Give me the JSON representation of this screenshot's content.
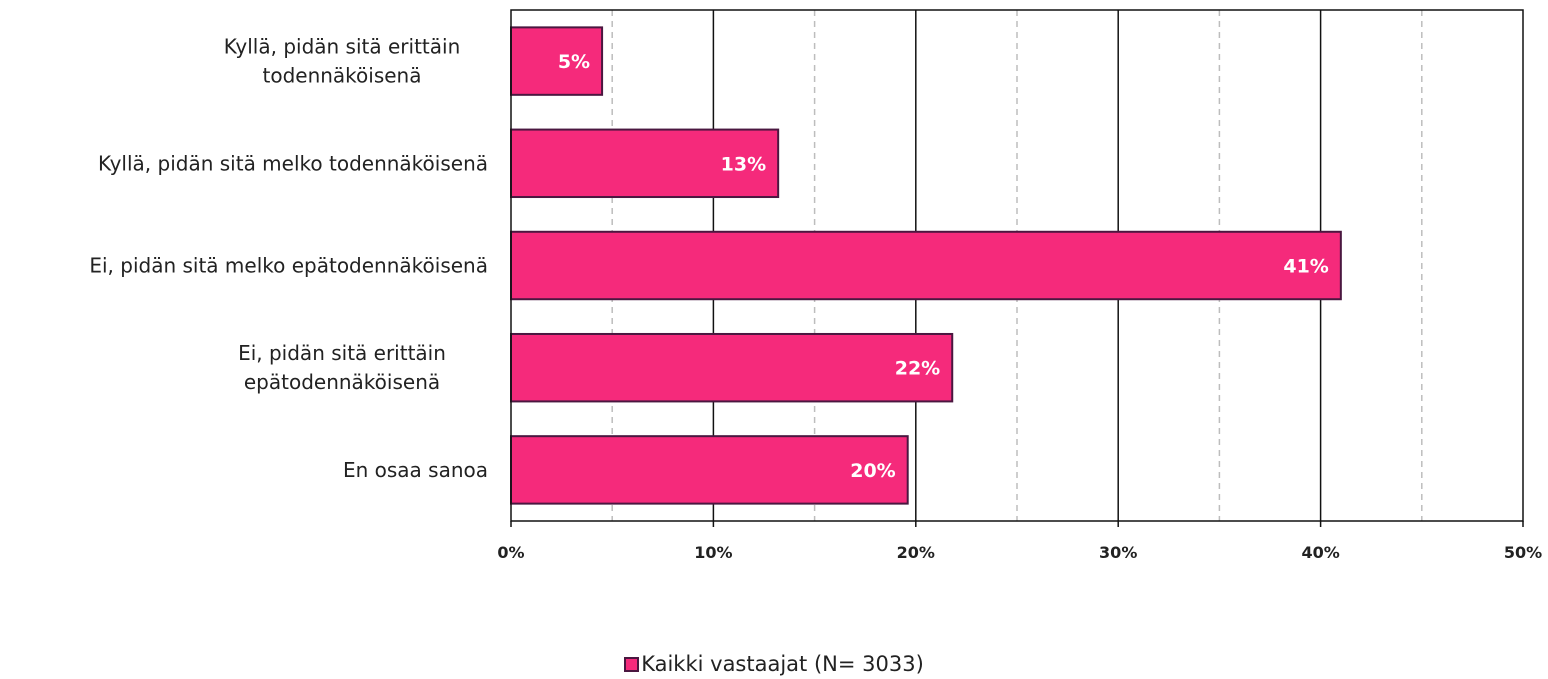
{
  "chart_data": {
    "type": "bar",
    "orientation": "horizontal",
    "categories": [
      [
        "Kyllä, pidän sitä erittäin",
        "todennäköisenä"
      ],
      [
        "Kyllä, pidän sitä melko todennäköisenä"
      ],
      [
        "Ei, pidän sitä melko epätodennäköisenä"
      ],
      [
        "Ei, pidän sitä erittäin",
        "epätodennäköisenä"
      ],
      [
        "En osaa sanoa"
      ]
    ],
    "series": [
      {
        "name": "Kaikki vastaajat (N= 3033)",
        "values": [
          4.5,
          13.2,
          41.0,
          21.8,
          19.6
        ],
        "labels": [
          "5%",
          "13%",
          "41%",
          "22%",
          "20%"
        ],
        "color": "#f52a7b",
        "border_color": "#4a1740"
      }
    ],
    "xlim": [
      0,
      50
    ],
    "x_ticks": [
      0,
      10,
      20,
      30,
      40,
      50
    ],
    "x_tick_labels": [
      "0%",
      "10%",
      "20%",
      "30%",
      "40%",
      "50%"
    ],
    "grid": {
      "major": true,
      "minor_dashed": true
    },
    "legend_position": "bottom-center"
  }
}
